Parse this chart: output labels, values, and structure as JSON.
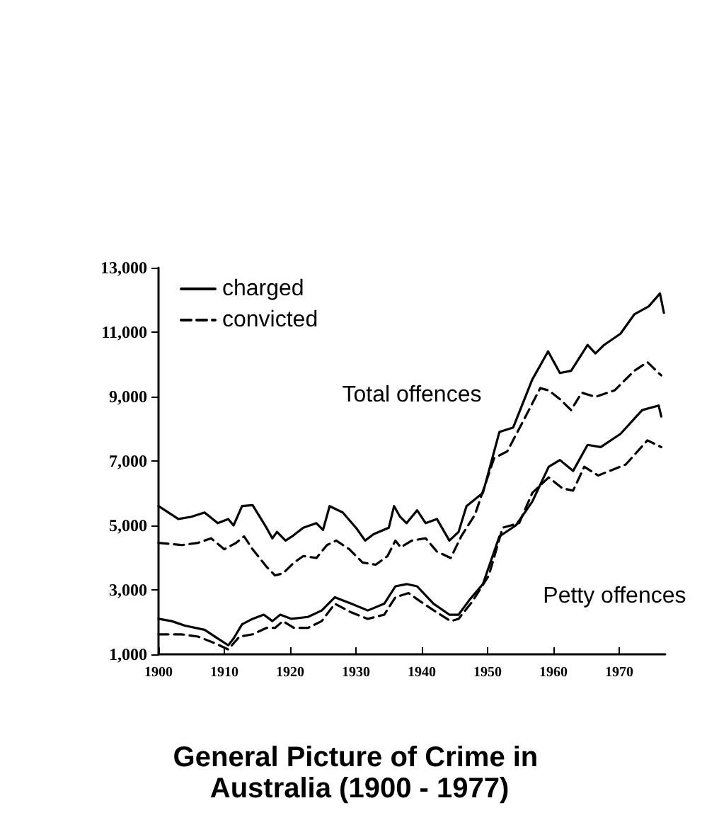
{
  "chart_data": {
    "type": "line",
    "title": "General Picture of Crime in Australia (1900 - 1977)",
    "xlim": [
      1900,
      1977
    ],
    "ylim": [
      1000,
      13000
    ],
    "xticks": [
      1900,
      1910,
      1920,
      1930,
      1940,
      1950,
      1960,
      1970
    ],
    "yticks": [
      {
        "value": 1000,
        "label": "1,000"
      },
      {
        "value": 3000,
        "label": "3,000"
      },
      {
        "value": 5000,
        "label": "5,000"
      },
      {
        "value": 7000,
        "label": "7,000"
      },
      {
        "value": 9000,
        "label": "9,000"
      },
      {
        "value": 11000,
        "label": "11,000"
      },
      {
        "value": 13000,
        "label": "13,000"
      }
    ],
    "grid": false,
    "legend": "top left",
    "marker": "none",
    "annotations": [
      "Total offences",
      "Petty offences"
    ],
    "series": [
      {
        "name": "charged",
        "color": "#000000",
        "line_style": "solid",
        "x": [
          1900,
          1903,
          1905,
          1907,
          1909,
          1910.6,
          1911.4,
          1912.7,
          1914.3,
          1916.4,
          1917.3,
          1918,
          1919.3,
          1920.3,
          1922,
          1924,
          1925,
          1926,
          1928,
          1930,
          1931.4,
          1932.7,
          1935,
          1935.8,
          1936.7,
          1937.7,
          1939.3,
          1940.6,
          1942.3,
          1944.2,
          1945.6,
          1946.8,
          1949.3,
          1951.8,
          1953.9,
          1956.8,
          1959.2,
          1961,
          1962.7,
          1965.2,
          1966.4,
          1967.7,
          1970.2,
          1972.3,
          1974.5,
          1976.2,
          1976.8
        ],
        "values": [
          5600,
          5200,
          5270,
          5400,
          5070,
          5200,
          5000,
          5600,
          5630,
          4930,
          4600,
          4800,
          4530,
          4660,
          4930,
          5070,
          4860,
          5600,
          5400,
          4930,
          4530,
          4730,
          4930,
          5600,
          5270,
          5070,
          5470,
          5070,
          5200,
          4530,
          4800,
          5600,
          6010,
          7900,
          8040,
          9530,
          10400,
          9730,
          9800,
          10600,
          10340,
          10600,
          10950,
          11550,
          11800,
          12200,
          11600
        ]
      },
      {
        "name": "convicted",
        "color": "#000000",
        "line_style": "dashed",
        "x": [
          1900,
          1903.5,
          1906,
          1908,
          1910,
          1911.8,
          1913,
          1914.3,
          1916.4,
          1917.7,
          1918.9,
          1920.6,
          1922,
          1924,
          1925.6,
          1927,
          1929,
          1931,
          1933,
          1934.8,
          1936,
          1936.8,
          1938.5,
          1940.6,
          1942.3,
          1944.4,
          1946,
          1948.1,
          1951,
          1953,
          1955.6,
          1958,
          1959.3,
          1961,
          1962.7,
          1964.3,
          1966.4,
          1969.3,
          1972.3,
          1974.3,
          1976,
          1976.4
        ],
        "values": [
          4460,
          4390,
          4460,
          4600,
          4260,
          4460,
          4660,
          4260,
          3720,
          3450,
          3510,
          3850,
          4050,
          3990,
          4390,
          4530,
          4260,
          3850,
          3780,
          4050,
          4530,
          4320,
          4530,
          4600,
          4190,
          3990,
          4660,
          5340,
          7090,
          7300,
          8310,
          9260,
          9190,
          8920,
          8580,
          9120,
          8990,
          9190,
          9800,
          10070,
          9730,
          9660
        ]
      },
      {
        "color": "#000000",
        "line_style": "solid",
        "x": [
          1900,
          1902,
          1904,
          1907,
          1909,
          1910.6,
          1911.4,
          1912.7,
          1914.3,
          1916,
          1917.3,
          1918.5,
          1920.2,
          1922.7,
          1924.8,
          1926.8,
          1929.3,
          1931.8,
          1934.3,
          1936,
          1937.7,
          1939.3,
          1941.8,
          1944.2,
          1945.6,
          1947.3,
          1949.3,
          1951.8,
          1954.3,
          1956.8,
          1959.3,
          1961,
          1963,
          1965.2,
          1967.2,
          1970.2,
          1973.5,
          1976,
          1976.4
        ],
        "values": [
          2100,
          2030,
          1890,
          1760,
          1490,
          1280,
          1490,
          1930,
          2100,
          2230,
          2030,
          2230,
          2100,
          2160,
          2360,
          2770,
          2570,
          2360,
          2570,
          3110,
          3180,
          3110,
          2570,
          2230,
          2230,
          2700,
          3180,
          4660,
          5000,
          5740,
          6820,
          7030,
          6690,
          7500,
          7430,
          7840,
          8580,
          8720,
          8380
        ]
      },
      {
        "color": "#000000",
        "line_style": "dashed",
        "x": [
          1900,
          1903.5,
          1906,
          1908.5,
          1910.6,
          1912.3,
          1914.3,
          1916.4,
          1917.7,
          1918.9,
          1920.6,
          1922.7,
          1924.8,
          1926.8,
          1929.3,
          1931.8,
          1934.3,
          1936,
          1938,
          1939.8,
          1942.3,
          1944.4,
          1945.6,
          1947.7,
          1950.2,
          1952.3,
          1954.8,
          1956.8,
          1959.3,
          1961.4,
          1963,
          1964.7,
          1966.8,
          1971,
          1974.3,
          1976.4
        ],
        "values": [
          1620,
          1620,
          1550,
          1350,
          1150,
          1550,
          1620,
          1820,
          1820,
          2030,
          1820,
          1820,
          2030,
          2570,
          2300,
          2100,
          2230,
          2770,
          2900,
          2640,
          2300,
          2030,
          2100,
          2640,
          3450,
          4930,
          5070,
          6010,
          6490,
          6150,
          6080,
          6820,
          6550,
          6890,
          7640,
          7430
        ]
      }
    ]
  }
}
